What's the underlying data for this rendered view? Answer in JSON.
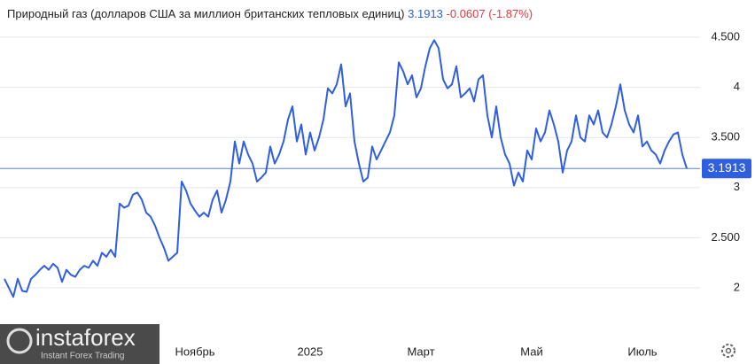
{
  "header": {
    "title": "Природный газ (долларов США за миллион британских тепловых единиц)",
    "price": "3.1913",
    "change": "-0.0607 (-1.87%)"
  },
  "logo": {
    "name": "instaforex",
    "tagline": "Instant Forex Trading"
  },
  "chart_data": {
    "type": "line",
    "color": "#2f5fe0",
    "grid": true,
    "values": [
      2.09,
      2.0,
      1.91,
      2.09,
      1.97,
      1.96,
      2.09,
      2.13,
      2.18,
      2.22,
      2.18,
      2.24,
      2.2,
      2.06,
      2.18,
      2.13,
      2.11,
      2.18,
      2.22,
      2.2,
      2.27,
      2.22,
      2.35,
      2.31,
      2.38,
      2.31,
      2.84,
      2.8,
      2.82,
      2.93,
      2.95,
      2.88,
      2.75,
      2.71,
      2.62,
      2.5,
      2.4,
      2.27,
      2.31,
      2.35,
      3.06,
      2.97,
      2.84,
      2.77,
      2.71,
      2.75,
      2.71,
      2.88,
      2.97,
      2.75,
      2.88,
      3.06,
      3.46,
      3.24,
      3.46,
      3.33,
      3.24,
      3.06,
      3.1,
      3.15,
      3.41,
      3.24,
      3.33,
      3.46,
      3.68,
      3.81,
      3.46,
      3.63,
      3.33,
      3.55,
      3.37,
      3.5,
      3.68,
      3.99,
      3.94,
      4.03,
      4.23,
      3.81,
      3.94,
      3.46,
      3.24,
      3.06,
      3.1,
      3.41,
      3.28,
      3.37,
      3.46,
      3.55,
      3.72,
      4.25,
      4.16,
      4.03,
      4.12,
      3.9,
      3.99,
      4.21,
      4.39,
      4.47,
      4.39,
      4.08,
      3.99,
      4.03,
      4.21,
      3.9,
      3.94,
      3.99,
      3.86,
      4.08,
      4.12,
      3.72,
      3.5,
      3.81,
      3.5,
      3.33,
      3.24,
      3.02,
      3.15,
      3.06,
      3.37,
      3.28,
      3.59,
      3.46,
      3.55,
      3.77,
      3.63,
      3.46,
      3.15,
      3.37,
      3.46,
      3.72,
      3.5,
      3.46,
      3.72,
      3.63,
      3.77,
      3.55,
      3.5,
      3.63,
      3.81,
      4.03,
      3.77,
      3.63,
      3.55,
      3.72,
      3.41,
      3.46,
      3.37,
      3.33,
      3.24,
      3.37,
      3.46,
      3.53,
      3.55,
      3.33,
      3.19
    ],
    "xlim": [
      0,
      154
    ],
    "xticks": [
      {
        "value": 43,
        "label": "Ноябрь"
      },
      {
        "value": 69,
        "label": "2025"
      },
      {
        "value": 94,
        "label": "Март"
      },
      {
        "value": 119,
        "label": "Май"
      },
      {
        "value": 144,
        "label": "Июль"
      }
    ],
    "ylim": [
      1.5,
      4.6
    ],
    "yticks": [
      2,
      {
        "value": 2.5,
        "label": "2.500"
      },
      3,
      {
        "value": 3.5,
        "label": "3.500"
      },
      4,
      {
        "value": 4.5,
        "label": "4.500"
      }
    ]
  }
}
